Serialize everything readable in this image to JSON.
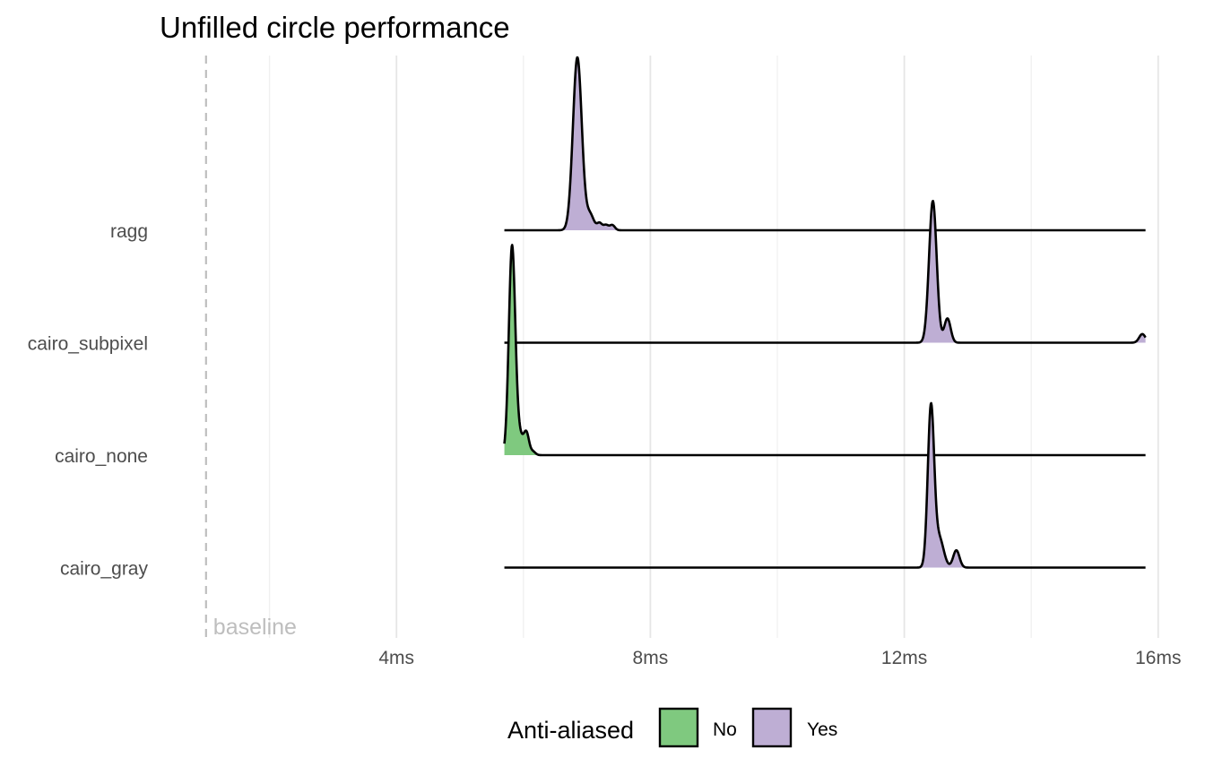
{
  "chart_data": {
    "type": "ridgeline",
    "title": "Unfilled circle performance",
    "xlabel": "",
    "ylabel": "",
    "x_unit": "ms",
    "xlim": [
      0.0,
      16.0
    ],
    "x_ticks": [
      4,
      8,
      12,
      16
    ],
    "x_tick_labels": [
      "4ms",
      "8ms",
      "12ms",
      "16ms"
    ],
    "x_minor_grid": [
      2,
      6,
      10,
      14
    ],
    "grid": true,
    "baseline": {
      "label": "baseline",
      "x": 1.0,
      "style": "dashed",
      "color": "#bebebe"
    },
    "categories": [
      "ragg",
      "cairo_subpixel",
      "cairo_none",
      "cairo_gray"
    ],
    "series": [
      {
        "name": "ragg",
        "anti_aliased": "Yes",
        "density_range": [
          5.7,
          15.8
        ],
        "peaks": [
          {
            "x": 6.85,
            "height": 1.0,
            "width": 0.07
          },
          {
            "x": 7.05,
            "height": 0.09,
            "width": 0.06
          },
          {
            "x": 7.2,
            "height": 0.04,
            "width": 0.04
          },
          {
            "x": 7.3,
            "height": 0.03,
            "width": 0.04
          },
          {
            "x": 7.4,
            "height": 0.03,
            "width": 0.04
          }
        ]
      },
      {
        "name": "cairo_subpixel",
        "anti_aliased": "Yes",
        "density_range": [
          5.7,
          15.8
        ],
        "peaks": [
          {
            "x": 12.45,
            "height": 0.82,
            "width": 0.06
          },
          {
            "x": 12.68,
            "height": 0.14,
            "width": 0.05
          },
          {
            "x": 15.75,
            "height": 0.05,
            "width": 0.05
          }
        ]
      },
      {
        "name": "cairo_none",
        "anti_aliased": "No",
        "density_range": [
          5.7,
          15.8
        ],
        "peaks": [
          {
            "x": 5.82,
            "height": 1.18,
            "width": 0.05
          },
          {
            "x": 5.93,
            "height": 0.12,
            "width": 0.07
          },
          {
            "x": 6.05,
            "height": 0.11,
            "width": 0.04
          },
          {
            "x": 6.15,
            "height": 0.02,
            "width": 0.04
          }
        ]
      },
      {
        "name": "cairo_gray",
        "anti_aliased": "Yes",
        "density_range": [
          5.7,
          15.8
        ],
        "peaks": [
          {
            "x": 12.42,
            "height": 0.92,
            "width": 0.05
          },
          {
            "x": 12.55,
            "height": 0.17,
            "width": 0.07
          },
          {
            "x": 12.82,
            "height": 0.1,
            "width": 0.05
          }
        ]
      }
    ],
    "fill_by": "anti_aliased",
    "colors": {
      "No": "#7fc97f",
      "Yes": "#beaed4"
    },
    "legend": {
      "title": "Anti-aliased",
      "position": "bottom",
      "items": [
        {
          "label": "No",
          "color": "#7fc97f"
        },
        {
          "label": "Yes",
          "color": "#beaed4"
        }
      ]
    }
  }
}
